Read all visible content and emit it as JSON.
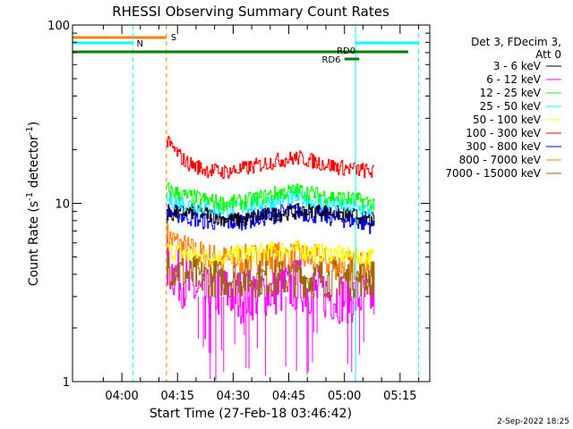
{
  "chart_data": {
    "type": "line",
    "title": "RHESSI Observing Summary Count Rates",
    "xlabel": "Start Time (27-Feb-18 03:46:42)",
    "ylabel": "Count Rate (s",
    "ylabel_sup": "-1",
    "ylabel_mid": " detector",
    "ylabel_sup2": "-1",
    "ylabel_end": ")",
    "y_scale": "log",
    "ylim": [
      1,
      100
    ],
    "xlim": [
      "03:46:42",
      "05:23:00"
    ],
    "x_ticks": [
      "04:00",
      "04:15",
      "04:30",
      "04:45",
      "05:00",
      "05:15"
    ],
    "y_ticks": [
      "1",
      "10",
      "100"
    ],
    "legend_header": [
      "Det 3, FDecim 3,",
      "Att 0"
    ],
    "legend_placement": "right",
    "series": [
      {
        "name": "3 - 6 keV",
        "color": "#000000",
        "values": [
          8.5,
          9.0,
          8.8,
          8.2,
          8.0,
          8.5,
          8.8,
          9.0,
          9.2,
          8.8,
          8.5,
          8.0
        ]
      },
      {
        "name": "6 - 12 keV",
        "color": "#ff00ff",
        "values": [
          4.5,
          3.5,
          3.0,
          3.2,
          3.0,
          3.2,
          3.3,
          3.5,
          3.2,
          3.0,
          3.0,
          3.0
        ]
      },
      {
        "name": "12 - 25 keV",
        "color": "#00ff00",
        "values": [
          12.0,
          11.0,
          10.5,
          10.0,
          10.2,
          10.8,
          11.5,
          11.8,
          11.2,
          10.8,
          10.5,
          10.0
        ]
      },
      {
        "name": "25 - 50 keV",
        "color": "#00ffff",
        "values": [
          10.5,
          10.0,
          9.5,
          9.2,
          9.5,
          10.0,
          10.5,
          10.8,
          10.2,
          9.8,
          9.5,
          9.0
        ]
      },
      {
        "name": "50 - 100 keV",
        "color": "#ffff00",
        "values": [
          5.5,
          5.2,
          5.0,
          5.0,
          5.2,
          5.3,
          5.5,
          5.5,
          5.3,
          5.2,
          5.0,
          5.0
        ]
      },
      {
        "name": "100 - 300 keV",
        "color": "#ff0000",
        "values": [
          22.0,
          17.0,
          15.5,
          15.0,
          15.5,
          16.5,
          17.5,
          18.0,
          17.0,
          16.0,
          15.5,
          15.0
        ]
      },
      {
        "name": "300 - 800 keV",
        "color": "#0000ff",
        "values": [
          9.0,
          8.5,
          8.0,
          7.8,
          8.0,
          8.3,
          8.8,
          9.0,
          8.6,
          8.3,
          8.0,
          7.5
        ]
      },
      {
        "name": "800 - 7000 keV",
        "color": "#ff8000",
        "values": [
          6.5,
          5.5,
          5.0,
          4.8,
          4.8,
          5.0,
          5.0,
          5.0,
          4.8,
          4.5,
          4.5,
          4.2
        ]
      },
      {
        "name": "7000 - 15000 keV",
        "color": "#996600",
        "values": [
          4.5,
          4.0,
          3.8,
          3.8,
          3.8,
          3.8,
          3.8,
          3.8,
          3.8,
          3.8,
          3.8,
          3.8
        ]
      }
    ],
    "data_window": [
      "04:12",
      "05:08"
    ],
    "annotations": [
      {
        "label": "S",
        "color": "#ff8000"
      },
      {
        "label": "N",
        "color": "#00ffff"
      },
      {
        "label": "RD0",
        "color": "#008000"
      },
      {
        "label": "RD6",
        "color": "#008000"
      }
    ],
    "footer_timestamp": "2-Sep-2022 18:25"
  }
}
